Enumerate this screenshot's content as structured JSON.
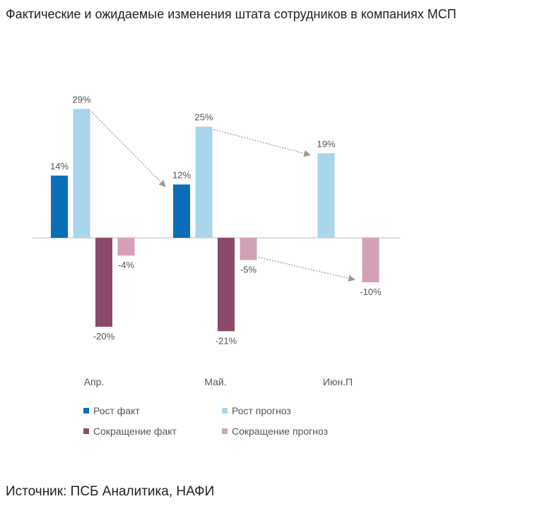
{
  "page": {
    "title": "Фактические и ожидаемые изменения штата сотрудников в компаниях МСП",
    "source": "Источник: ПСБ Аналитика, НАФИ"
  },
  "colors": {
    "growth_fact": "#0a6eb8",
    "growth_forecast": "#a8d4ec",
    "cut_fact": "#8b4a6c",
    "cut_forecast": "#d4a0b8",
    "axis": "#bbbbbb",
    "arrow": "#999999",
    "label": "#555555"
  },
  "chart_data": {
    "type": "bar",
    "categories": [
      "Апр.",
      "Май.",
      "Июн.П"
    ],
    "series": [
      {
        "name": "Рост факт",
        "values": [
          14,
          12,
          null
        ],
        "labels": [
          "14%",
          "12%",
          ""
        ]
      },
      {
        "name": "Рост прогноз",
        "values": [
          29,
          25,
          19
        ],
        "labels": [
          "29%",
          "25%",
          "19%"
        ]
      },
      {
        "name": "Сокращение факт",
        "values": [
          -20,
          -21,
          null
        ],
        "labels": [
          "-20%",
          "-21%",
          ""
        ]
      },
      {
        "name": "Сокращение прогноз",
        "values": [
          -4,
          -5,
          -10
        ],
        "labels": [
          "-4%",
          "-5%",
          "-10%"
        ]
      }
    ],
    "ylim": [
      -22,
      31
    ],
    "grid": false,
    "legend_position": "bottom",
    "annotations": [
      {
        "from": [
          0,
          1
        ],
        "to": [
          1,
          0
        ],
        "kind": "dotted-arrow"
      },
      {
        "from": [
          1,
          1
        ],
        "to": [
          2,
          1
        ],
        "kind": "dotted-arrow"
      },
      {
        "from": [
          1,
          3
        ],
        "to": [
          2,
          3
        ],
        "kind": "dotted-arrow"
      }
    ]
  }
}
